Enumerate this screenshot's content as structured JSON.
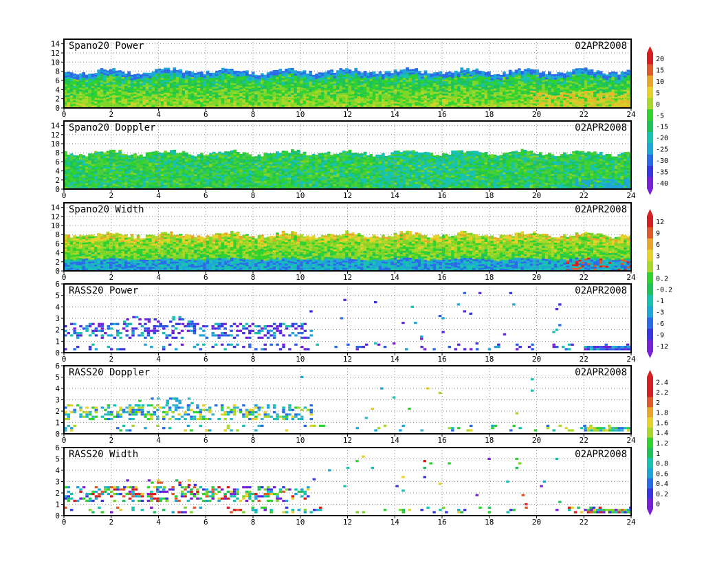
{
  "figure": {
    "date": "02APR2008"
  },
  "colors": {
    "panel_frame": "#000000",
    "grid": "#8a8a8a",
    "colorbar1": [
      "#7a1fd8",
      "#3a35e0",
      "#2a6be6",
      "#1ea6d8",
      "#18c2b0",
      "#1fc25a",
      "#2fd22f",
      "#a8d82a",
      "#e6d22a",
      "#e8a62a",
      "#e0592a",
      "#d81e1e"
    ],
    "colorbar2": [
      "#7a1fd8",
      "#3a35e0",
      "#2a6be6",
      "#1ea6d8",
      "#18c2b0",
      "#1fc25a",
      "#2fd22f",
      "#a8d82a",
      "#e6d22a",
      "#e8a62a",
      "#e0592a",
      "#d81e1e"
    ],
    "colorbar3": [
      "#7a1fd8",
      "#3a35e0",
      "#2a6be6",
      "#1ea6d8",
      "#18c2b0",
      "#1fc25a",
      "#2fd22f",
      "#a8d82a",
      "#e6d22a",
      "#e8a62a",
      "#e0592a",
      "#d81e1e"
    ]
  },
  "chart_data": [
    {
      "type": "heatmap",
      "title": "Spano20 Power",
      "date": "02APR2008",
      "xlim": [
        0,
        24
      ],
      "ylim": [
        0,
        15
      ],
      "xticks": [
        "0",
        "2",
        "4",
        "6",
        "8",
        "10",
        "12",
        "14",
        "16",
        "18",
        "20",
        "22",
        "24"
      ],
      "yticks": [
        "0",
        "2",
        "4",
        "6",
        "8",
        "10",
        "12",
        "14"
      ],
      "grid": true,
      "mode": "field",
      "palette": "power",
      "top_km": 8.0
    },
    {
      "type": "heatmap",
      "title": "Spano20 Doppler",
      "date": "02APR2008",
      "xlim": [
        0,
        24
      ],
      "ylim": [
        0,
        15
      ],
      "xticks": [
        "0",
        "2",
        "4",
        "6",
        "8",
        "10",
        "12",
        "14",
        "16",
        "18",
        "20",
        "22",
        "24"
      ],
      "yticks": [
        "0",
        "2",
        "4",
        "6",
        "8",
        "10",
        "12",
        "14"
      ],
      "grid": true,
      "mode": "field",
      "palette": "doppler",
      "top_km": 8.0
    },
    {
      "type": "heatmap",
      "title": "Spano20 Width",
      "date": "02APR2008",
      "xlim": [
        0,
        24
      ],
      "ylim": [
        0,
        15
      ],
      "xticks": [
        "0",
        "2",
        "4",
        "6",
        "8",
        "10",
        "12",
        "14",
        "16",
        "18",
        "20",
        "22",
        "24"
      ],
      "yticks": [
        "0",
        "2",
        "4",
        "6",
        "8",
        "10",
        "12",
        "14"
      ],
      "grid": true,
      "mode": "field",
      "palette": "width",
      "top_km": 8.0
    },
    {
      "type": "heatmap",
      "title": "RASS20 Power",
      "date": "02APR2008",
      "xlim": [
        0,
        24
      ],
      "ylim": [
        0,
        6
      ],
      "xticks": [
        "0",
        "2",
        "4",
        "6",
        "8",
        "10",
        "12",
        "14",
        "16",
        "18",
        "20",
        "22",
        "24"
      ],
      "yticks": [
        "0",
        "1",
        "2",
        "3",
        "4",
        "5",
        "6"
      ],
      "grid": true,
      "mode": "sparse",
      "palette": "rpower"
    },
    {
      "type": "heatmap",
      "title": "RASS20 Doppler",
      "date": "02APR2008",
      "xlim": [
        0,
        24
      ],
      "ylim": [
        0,
        6
      ],
      "xticks": [
        "0",
        "2",
        "4",
        "6",
        "8",
        "10",
        "12",
        "14",
        "16",
        "18",
        "20",
        "22",
        "24"
      ],
      "yticks": [
        "0",
        "1",
        "2",
        "3",
        "4",
        "5",
        "6"
      ],
      "grid": true,
      "mode": "sparse",
      "palette": "rdoppler"
    },
    {
      "type": "heatmap",
      "title": "RASS20 Width",
      "date": "02APR2008",
      "xlim": [
        0,
        24
      ],
      "ylim": [
        0,
        6
      ],
      "xticks": [
        "0",
        "2",
        "4",
        "6",
        "8",
        "10",
        "12",
        "14",
        "16",
        "18",
        "20",
        "22",
        "24"
      ],
      "yticks": [
        "0",
        "1",
        "2",
        "3",
        "4",
        "5",
        "6"
      ],
      "grid": true,
      "mode": "sparse",
      "palette": "rwidth"
    }
  ],
  "colorbars": [
    {
      "labels": [
        "20",
        "15",
        "10",
        "5",
        "0",
        "-5",
        "-15",
        "-20",
        "-25",
        "-30",
        "-35",
        "-40"
      ]
    },
    {
      "labels": [
        "12",
        "9",
        "6",
        "3",
        "1",
        "0.2",
        "-0.2",
        "-1",
        "-3",
        "-6",
        "-9",
        "-12"
      ]
    },
    {
      "labels": [
        "2.4",
        "2.2",
        "2",
        "1.8",
        "1.6",
        "1.4",
        "1.2",
        "1",
        "0.8",
        "0.6",
        "0.4",
        "0.2",
        "0"
      ]
    }
  ]
}
